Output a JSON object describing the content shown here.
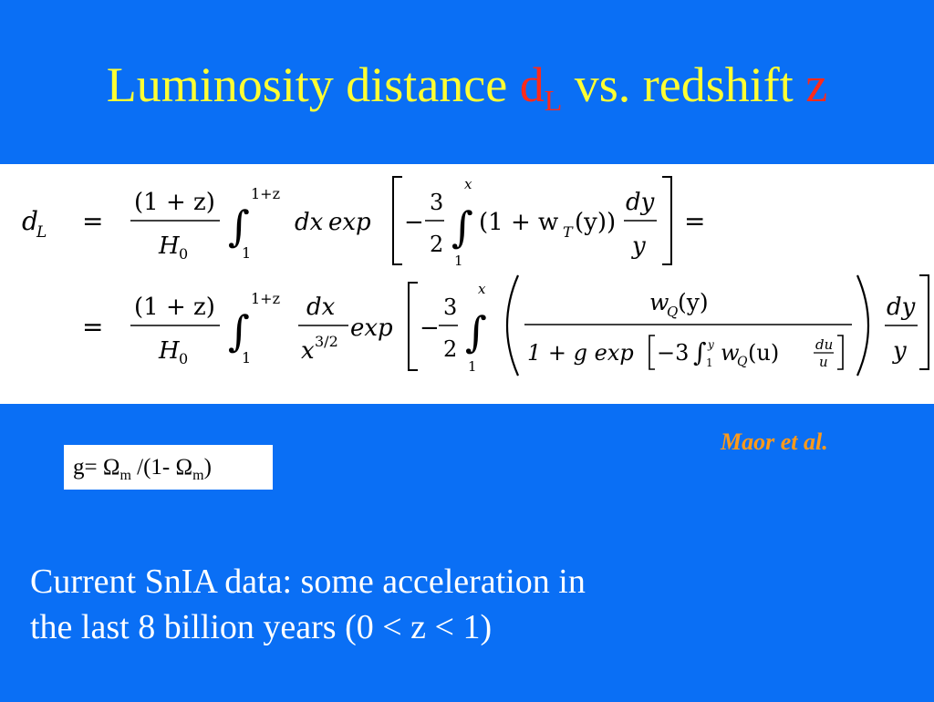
{
  "slide": {
    "title": {
      "text_before": "Luminosity distance ",
      "dl_main": "d",
      "dl_sub": "L",
      "text_middle": " vs. redshift ",
      "z": "z"
    },
    "citation": "Maor et al.",
    "g_definition": {
      "prefix": "g= ",
      "omega": "Ω",
      "sub": "m",
      "middle": " /(1- ",
      "suffix": ")"
    },
    "body_lines": [
      "Current SnIA data: some acceleration in",
      "the last 8 billion years (0 < z < 1)"
    ]
  },
  "equation": {
    "lhs_d": "d",
    "lhs_sub": "L",
    "eq": "=",
    "frac_num": "(1 + z)",
    "frac_den_h": "H",
    "frac_den_sub": "0",
    "int_upper": "1+z",
    "int_lower": "1",
    "dx": "dx",
    "exp": "exp",
    "minus": "−",
    "three": "3",
    "two": "2",
    "inner_upper": "x",
    "inner_lower": "1",
    "line1_integrand": "(1 + w",
    "line1_wsub": "T",
    "line1_arg": "(y))",
    "dy": "dy",
    "y": "y",
    "x_power_base": "x",
    "x_power_exp": "3/2",
    "wq": "w",
    "wq_sub": "Q",
    "wq_arg": "(y)",
    "den_start": "1 + g  exp",
    "den_minus3": "−3",
    "den_int_upper": "y",
    "den_int_lower": "1",
    "den_wq_arg": "(u)",
    "du": "du",
    "u": "u",
    "int_sign": "∫"
  },
  "colors": {
    "background": "#0a6ff5",
    "title": "#ffff33",
    "title_accent": "#ff2a1a",
    "citation": "#ff9a1a",
    "body_text": "#ffffff"
  }
}
